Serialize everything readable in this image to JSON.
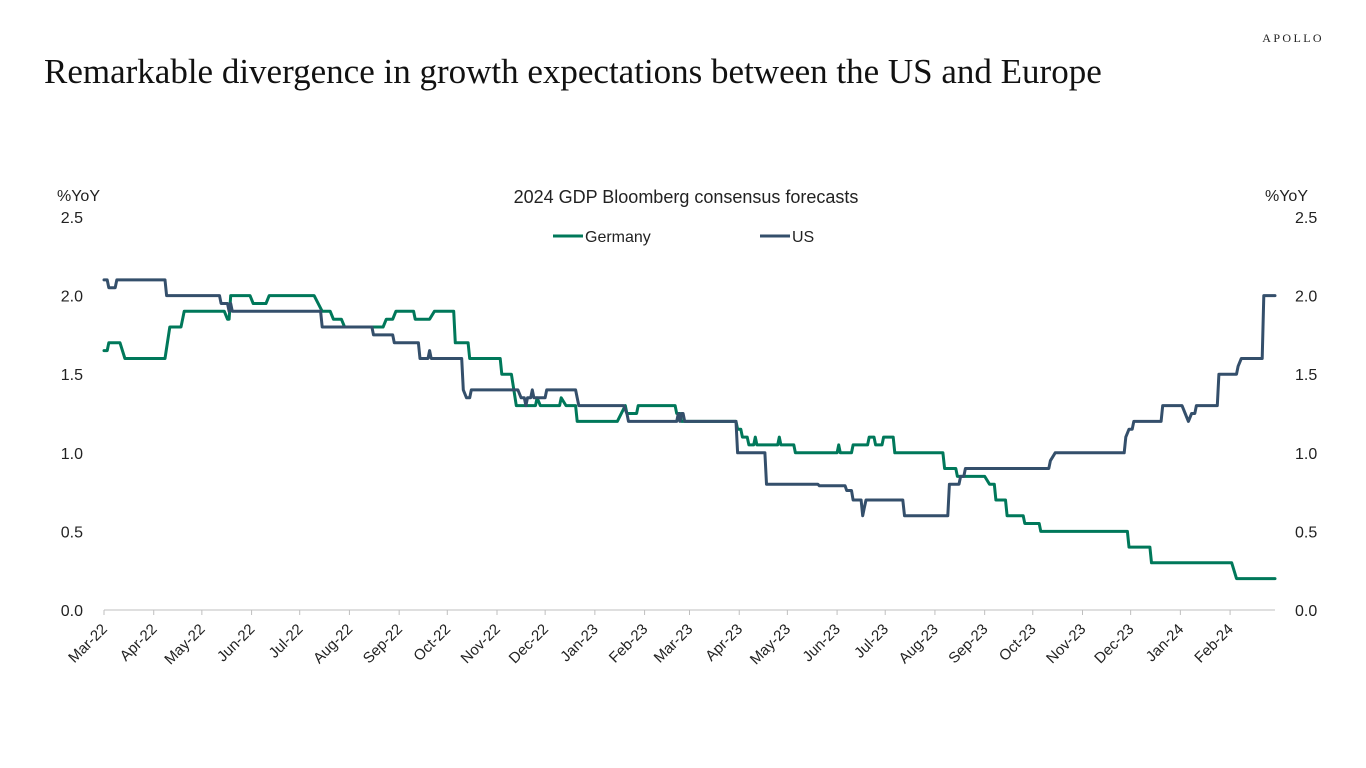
{
  "brand": "APOLLO",
  "headline": "Remarkable divergence in growth expectations between the US and Europe",
  "colors": {
    "germany": "#00785a",
    "us": "#344f6b",
    "axis": "#bfbfbf",
    "text": "#222222"
  },
  "chart_data": {
    "type": "line",
    "title": "2024 GDP Bloomberg consensus forecasts",
    "ylabel_left": "%YoY",
    "ylabel_right": "%YoY",
    "xlim": [
      "2022-03-01",
      "2024-02-29"
    ],
    "ylim": [
      0,
      2.5
    ],
    "yticks": [
      "0.0",
      "0.5",
      "1.0",
      "1.5",
      "2.0",
      "2.5"
    ],
    "xticks": [
      {
        "date": "2022-03-01",
        "label": "Mar-22"
      },
      {
        "date": "2022-04-01",
        "label": "Apr-22"
      },
      {
        "date": "2022-05-01",
        "label": "May-22"
      },
      {
        "date": "2022-06-01",
        "label": "Jun-22"
      },
      {
        "date": "2022-07-01",
        "label": "Jul-22"
      },
      {
        "date": "2022-08-01",
        "label": "Aug-22"
      },
      {
        "date": "2022-09-01",
        "label": "Sep-22"
      },
      {
        "date": "2022-10-01",
        "label": "Oct-22"
      },
      {
        "date": "2022-11-01",
        "label": "Nov-22"
      },
      {
        "date": "2022-12-01",
        "label": "Dec-22"
      },
      {
        "date": "2023-01-01",
        "label": "Jan-23"
      },
      {
        "date": "2023-02-01",
        "label": "Feb-23"
      },
      {
        "date": "2023-03-01",
        "label": "Mar-23"
      },
      {
        "date": "2023-04-01",
        "label": "Apr-23"
      },
      {
        "date": "2023-05-01",
        "label": "May-23"
      },
      {
        "date": "2023-06-01",
        "label": "Jun-23"
      },
      {
        "date": "2023-07-01",
        "label": "Jul-23"
      },
      {
        "date": "2023-08-01",
        "label": "Aug-23"
      },
      {
        "date": "2023-09-01",
        "label": "Sep-23"
      },
      {
        "date": "2023-10-01",
        "label": "Oct-23"
      },
      {
        "date": "2023-11-01",
        "label": "Nov-23"
      },
      {
        "date": "2023-12-01",
        "label": "Dec-23"
      },
      {
        "date": "2024-01-01",
        "label": "Jan-24"
      },
      {
        "date": "2024-02-01",
        "label": "Feb-24"
      }
    ],
    "grid": false,
    "legend_position": "top-center",
    "series": [
      {
        "name": "Germany",
        "color": "#00785a",
        "points": [
          [
            "2022-03-01",
            1.65
          ],
          [
            "2022-03-03",
            1.65
          ],
          [
            "2022-03-04",
            1.7
          ],
          [
            "2022-03-11",
            1.7
          ],
          [
            "2022-03-14",
            1.6
          ],
          [
            "2022-04-08",
            1.6
          ],
          [
            "2022-04-11",
            1.8
          ],
          [
            "2022-04-18",
            1.8
          ],
          [
            "2022-04-20",
            1.9
          ],
          [
            "2022-05-15",
            1.9
          ],
          [
            "2022-05-17",
            1.85
          ],
          [
            "2022-05-18",
            1.85
          ],
          [
            "2022-05-19",
            2.0
          ],
          [
            "2022-05-31",
            2.0
          ],
          [
            "2022-06-02",
            1.95
          ],
          [
            "2022-06-10",
            1.95
          ],
          [
            "2022-06-12",
            2.0
          ],
          [
            "2022-07-10",
            2.0
          ],
          [
            "2022-07-15",
            1.9
          ],
          [
            "2022-07-20",
            1.9
          ],
          [
            "2022-07-22",
            1.85
          ],
          [
            "2022-07-27",
            1.85
          ],
          [
            "2022-07-29",
            1.8
          ],
          [
            "2022-08-22",
            1.8
          ],
          [
            "2022-08-24",
            1.85
          ],
          [
            "2022-08-28",
            1.85
          ],
          [
            "2022-08-30",
            1.9
          ],
          [
            "2022-09-10",
            1.9
          ],
          [
            "2022-09-11",
            1.85
          ],
          [
            "2022-09-20",
            1.85
          ],
          [
            "2022-09-23",
            1.9
          ],
          [
            "2022-10-05",
            1.9
          ],
          [
            "2022-10-06",
            1.7
          ],
          [
            "2022-10-14",
            1.7
          ],
          [
            "2022-10-15",
            1.6
          ],
          [
            "2022-11-03",
            1.6
          ],
          [
            "2022-11-04",
            1.5
          ],
          [
            "2022-11-10",
            1.5
          ],
          [
            "2022-11-13",
            1.3
          ],
          [
            "2022-11-25",
            1.3
          ],
          [
            "2022-11-26",
            1.35
          ],
          [
            "2022-11-28",
            1.3
          ],
          [
            "2022-12-10",
            1.3
          ],
          [
            "2022-12-11",
            1.35
          ],
          [
            "2022-12-14",
            1.3
          ],
          [
            "2022-12-20",
            1.3
          ],
          [
            "2022-12-21",
            1.2
          ],
          [
            "2023-01-15",
            1.2
          ],
          [
            "2023-01-20",
            1.3
          ],
          [
            "2023-01-21",
            1.25
          ],
          [
            "2023-01-27",
            1.25
          ],
          [
            "2023-01-28",
            1.3
          ],
          [
            "2023-02-20",
            1.3
          ],
          [
            "2023-02-21",
            1.25
          ],
          [
            "2023-02-23",
            1.25
          ],
          [
            "2023-02-24",
            1.2
          ],
          [
            "2023-03-30",
            1.2
          ],
          [
            "2023-03-31",
            1.15
          ],
          [
            "2023-04-02",
            1.15
          ],
          [
            "2023-04-03",
            1.1
          ],
          [
            "2023-04-06",
            1.1
          ],
          [
            "2023-04-07",
            1.05
          ],
          [
            "2023-04-10",
            1.05
          ],
          [
            "2023-04-11",
            1.1
          ],
          [
            "2023-04-12",
            1.05
          ],
          [
            "2023-04-25",
            1.05
          ],
          [
            "2023-04-26",
            1.1
          ],
          [
            "2023-04-27",
            1.05
          ],
          [
            "2023-05-05",
            1.05
          ],
          [
            "2023-05-06",
            1.0
          ],
          [
            "2023-06-01",
            1.0
          ],
          [
            "2023-06-02",
            1.05
          ],
          [
            "2023-06-03",
            1.0
          ],
          [
            "2023-06-10",
            1.0
          ],
          [
            "2023-06-11",
            1.05
          ],
          [
            "2023-06-20",
            1.05
          ],
          [
            "2023-06-21",
            1.1
          ],
          [
            "2023-06-24",
            1.1
          ],
          [
            "2023-06-25",
            1.05
          ],
          [
            "2023-06-29",
            1.05
          ],
          [
            "2023-06-30",
            1.1
          ],
          [
            "2023-07-06",
            1.1
          ],
          [
            "2023-07-07",
            1.0
          ],
          [
            "2023-08-06",
            1.0
          ],
          [
            "2023-08-07",
            0.9
          ],
          [
            "2023-08-14",
            0.9
          ],
          [
            "2023-08-15",
            0.85
          ],
          [
            "2023-09-01",
            0.85
          ],
          [
            "2023-09-04",
            0.8
          ],
          [
            "2023-09-07",
            0.8
          ],
          [
            "2023-09-08",
            0.7
          ],
          [
            "2023-09-14",
            0.7
          ],
          [
            "2023-09-15",
            0.6
          ],
          [
            "2023-09-25",
            0.6
          ],
          [
            "2023-09-26",
            0.55
          ],
          [
            "2023-10-05",
            0.55
          ],
          [
            "2023-10-06",
            0.5
          ],
          [
            "2023-11-29",
            0.5
          ],
          [
            "2023-11-30",
            0.4
          ],
          [
            "2023-12-13",
            0.4
          ],
          [
            "2023-12-14",
            0.3
          ],
          [
            "2024-02-02",
            0.3
          ],
          [
            "2024-02-05",
            0.2
          ],
          [
            "2024-02-29",
            0.2
          ]
        ]
      },
      {
        "name": "US",
        "color": "#344f6b",
        "points": [
          [
            "2022-03-01",
            2.1
          ],
          [
            "2022-03-03",
            2.1
          ],
          [
            "2022-03-04",
            2.05
          ],
          [
            "2022-03-08",
            2.05
          ],
          [
            "2022-03-09",
            2.1
          ],
          [
            "2022-04-08",
            2.1
          ],
          [
            "2022-04-09",
            2.0
          ],
          [
            "2022-05-12",
            2.0
          ],
          [
            "2022-05-13",
            1.95
          ],
          [
            "2022-05-17",
            1.95
          ],
          [
            "2022-05-18",
            1.9
          ],
          [
            "2022-05-19",
            1.95
          ],
          [
            "2022-05-20",
            1.9
          ],
          [
            "2022-07-14",
            1.9
          ],
          [
            "2022-07-15",
            1.8
          ],
          [
            "2022-08-15",
            1.8
          ],
          [
            "2022-08-16",
            1.75
          ],
          [
            "2022-08-28",
            1.75
          ],
          [
            "2022-08-29",
            1.7
          ],
          [
            "2022-09-13",
            1.7
          ],
          [
            "2022-09-14",
            1.6
          ],
          [
            "2022-09-19",
            1.6
          ],
          [
            "2022-09-20",
            1.65
          ],
          [
            "2022-09-21",
            1.6
          ],
          [
            "2022-10-10",
            1.6
          ],
          [
            "2022-10-11",
            1.4
          ],
          [
            "2022-10-13",
            1.35
          ],
          [
            "2022-10-15",
            1.35
          ],
          [
            "2022-10-16",
            1.4
          ],
          [
            "2022-11-14",
            1.4
          ],
          [
            "2022-11-16",
            1.35
          ],
          [
            "2022-11-18",
            1.35
          ],
          [
            "2022-11-19",
            1.3
          ],
          [
            "2022-11-20",
            1.35
          ],
          [
            "2022-11-22",
            1.35
          ],
          [
            "2022-11-23",
            1.4
          ],
          [
            "2022-11-24",
            1.35
          ],
          [
            "2022-12-01",
            1.35
          ],
          [
            "2022-12-02",
            1.4
          ],
          [
            "2022-12-20",
            1.4
          ],
          [
            "2022-12-21",
            1.35
          ],
          [
            "2022-12-22",
            1.3
          ],
          [
            "2023-01-19",
            1.3
          ],
          [
            "2023-01-21",
            1.25
          ],
          [
            "2023-01-22",
            1.2
          ],
          [
            "2023-02-21",
            1.2
          ],
          [
            "2023-02-22",
            1.25
          ],
          [
            "2023-02-23",
            1.2
          ],
          [
            "2023-02-24",
            1.25
          ],
          [
            "2023-02-25",
            1.25
          ],
          [
            "2023-02-26",
            1.2
          ],
          [
            "2023-03-30",
            1.2
          ],
          [
            "2023-03-31",
            1.0
          ],
          [
            "2023-04-17",
            1.0
          ],
          [
            "2023-04-18",
            0.8
          ],
          [
            "2023-05-20",
            0.8
          ],
          [
            "2023-05-21",
            0.79
          ],
          [
            "2023-06-06",
            0.79
          ],
          [
            "2023-06-07",
            0.76
          ],
          [
            "2023-06-10",
            0.76
          ],
          [
            "2023-06-11",
            0.7
          ],
          [
            "2023-06-16",
            0.7
          ],
          [
            "2023-06-17",
            0.6
          ],
          [
            "2023-06-18",
            0.65
          ],
          [
            "2023-06-19",
            0.7
          ],
          [
            "2023-07-12",
            0.7
          ],
          [
            "2023-07-13",
            0.6
          ],
          [
            "2023-08-09",
            0.6
          ],
          [
            "2023-08-10",
            0.8
          ],
          [
            "2023-08-16",
            0.8
          ],
          [
            "2023-08-17",
            0.85
          ],
          [
            "2023-08-19",
            0.85
          ],
          [
            "2023-08-20",
            0.9
          ],
          [
            "2023-10-11",
            0.9
          ],
          [
            "2023-10-12",
            0.95
          ],
          [
            "2023-10-15",
            1.0
          ],
          [
            "2023-11-27",
            1.0
          ],
          [
            "2023-11-28",
            1.1
          ],
          [
            "2023-11-30",
            1.15
          ],
          [
            "2023-12-02",
            1.15
          ],
          [
            "2023-12-03",
            1.2
          ],
          [
            "2023-12-20",
            1.2
          ],
          [
            "2023-12-21",
            1.3
          ],
          [
            "2024-01-02",
            1.3
          ],
          [
            "2024-01-04",
            1.25
          ],
          [
            "2024-01-06",
            1.2
          ],
          [
            "2024-01-08",
            1.25
          ],
          [
            "2024-01-10",
            1.25
          ],
          [
            "2024-01-11",
            1.3
          ],
          [
            "2024-01-24",
            1.3
          ],
          [
            "2024-01-25",
            1.5
          ],
          [
            "2024-02-05",
            1.5
          ],
          [
            "2024-02-06",
            1.55
          ],
          [
            "2024-02-08",
            1.6
          ],
          [
            "2024-02-21",
            1.6
          ],
          [
            "2024-02-22",
            2.0
          ],
          [
            "2024-02-29",
            2.0
          ]
        ]
      }
    ]
  }
}
